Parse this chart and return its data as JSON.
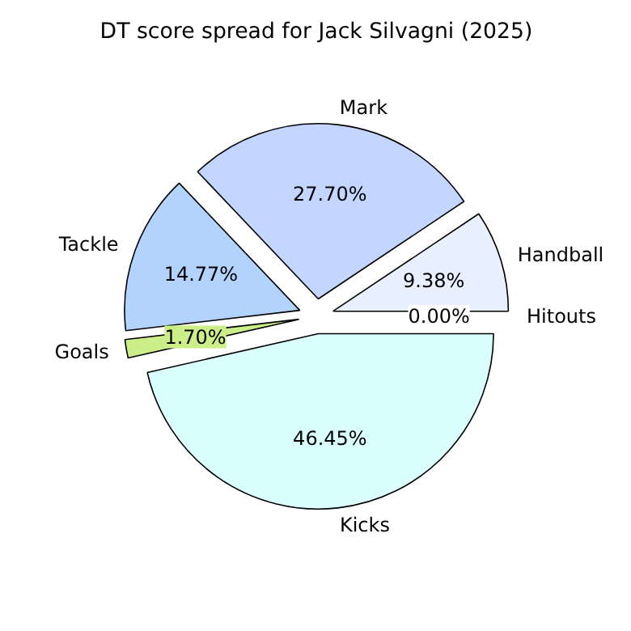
{
  "chart_data": {
    "type": "pie",
    "title": "DT score spread for Jack Silvagni (2025)",
    "categories": [
      "Hitouts",
      "Handball",
      "Mark",
      "Tackle",
      "Goals",
      "Kicks"
    ],
    "values": [
      0.0,
      9.38,
      27.7,
      14.77,
      1.7,
      46.45
    ],
    "value_labels": [
      "0.00%",
      "9.38%",
      "27.70%",
      "14.77%",
      "1.70%",
      "46.45%"
    ],
    "colors": [
      "#ffffff",
      "#e8efff",
      "#c2d6ff",
      "#b3d3ff",
      "#ccee88",
      "#d9ffff"
    ]
  }
}
